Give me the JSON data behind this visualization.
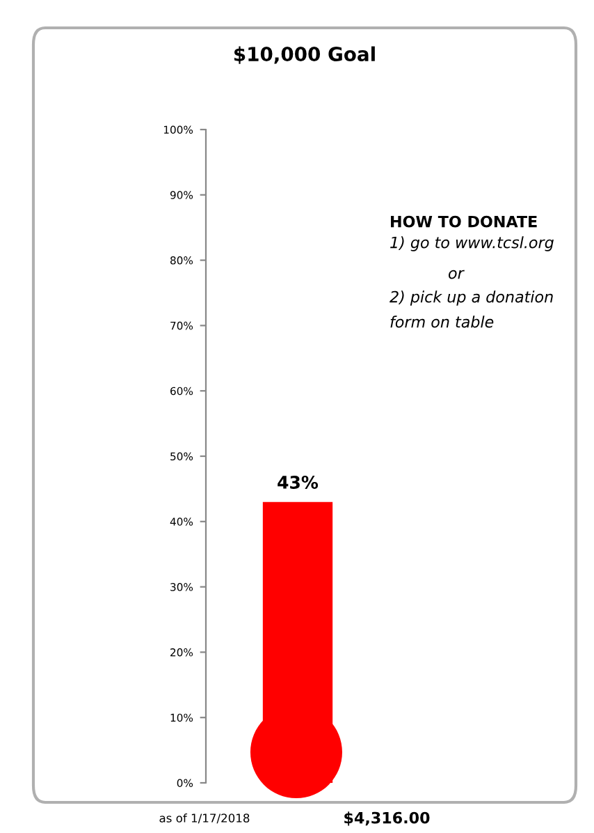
{
  "chart_data": {
    "type": "bar",
    "title": "$10,000 Goal",
    "categories": [
      null
    ],
    "series": [
      {
        "color": "#ff0000",
        "values": [
          43
        ],
        "value_labels": [
          "43%"
        ]
      }
    ],
    "ylim": [
      0,
      100
    ],
    "yticks": [
      {
        "value": 0,
        "label": "0%"
      },
      {
        "value": 10,
        "label": "10%"
      },
      {
        "value": 20,
        "label": "20%"
      },
      {
        "value": 30,
        "label": "30%"
      },
      {
        "value": 40,
        "label": "40%"
      },
      {
        "value": 50,
        "label": "50%"
      },
      {
        "value": 60,
        "label": "60%"
      },
      {
        "value": 70,
        "label": "70%"
      },
      {
        "value": 80,
        "label": "80%"
      },
      {
        "value": 90,
        "label": "90%"
      },
      {
        "value": 100,
        "label": "100%"
      }
    ],
    "grid": false,
    "legend": false,
    "tick_labels": "y",
    "annotations": [
      "HOW TO DONATE",
      "1) go to www.tcsl.org",
      "or",
      "2) pick up a donation",
      "form on table",
      "as of 1/17/2018",
      "$4,316.00"
    ]
  }
}
